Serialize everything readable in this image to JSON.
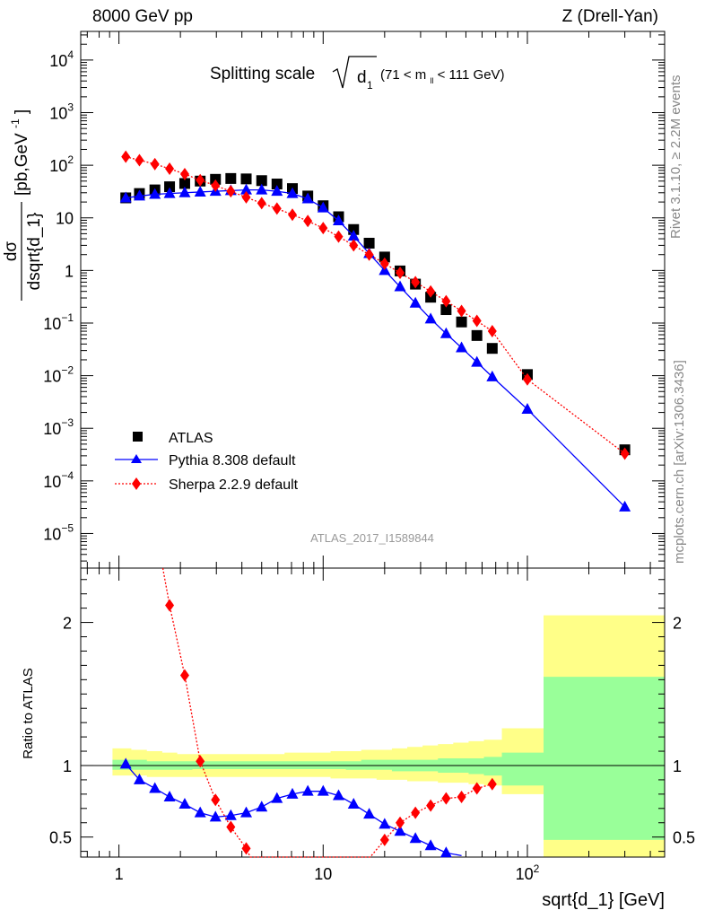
{
  "header": {
    "left": "8000 GeV pp",
    "right": "Z (Drell-Yan)"
  },
  "side_labels": {
    "rivet": "Rivet 3.1.10, ≥ 2.2M events",
    "mcplots": "mcplots.cern.ch [arXiv:1306.3436]"
  },
  "chart_data": [
    {
      "type": "scatter",
      "panel": "main",
      "title": "Splitting scale √d1 (71 < m_ll < 111 GeV)",
      "title_main": "Splitting scale",
      "title_var": "d",
      "title_var_sub": "1",
      "title_range_a": "(71 < m",
      "title_range_sub": "ll",
      "title_range_b": " < 111 GeV)",
      "ylabel": "dσ / dsqrt{d_1} [pb,GeV⁻¹]",
      "ylabel_num": "dσ",
      "ylabel_den": "dsqrt{d_1}",
      "ylabel_unit": "[pb,GeV",
      "ylabel_unit_sup": "-1",
      "ylabel_unit_end": "]",
      "yscale": "log",
      "xscale": "log",
      "xlim": [
        0.65,
        470
      ],
      "ylim": [
        2.2e-06,
        35000
      ],
      "legend_position": "bottom-left",
      "analysis_id": "ATLAS_2017_I1589844",
      "y_ticks": [
        {
          "base": "10",
          "exp": "4",
          "value": 10000
        },
        {
          "base": "10",
          "exp": "3",
          "value": 1000
        },
        {
          "base": "10",
          "exp": "2",
          "value": 100
        },
        {
          "base": "10",
          "exp": "",
          "value": 10
        },
        {
          "base": "1",
          "exp": "",
          "value": 1
        },
        {
          "base": "10",
          "exp": "−1",
          "value": 0.1
        },
        {
          "base": "10",
          "exp": "−2",
          "value": 0.01
        },
        {
          "base": "10",
          "exp": "−3",
          "value": 0.001
        },
        {
          "base": "10",
          "exp": "−4",
          "value": 0.0001
        },
        {
          "base": "10",
          "exp": "−5",
          "value": 1e-05
        }
      ],
      "series": [
        {
          "name": "ATLAS",
          "color": "#000000",
          "marker": "square",
          "x": [
            1.08,
            1.26,
            1.5,
            1.77,
            2.1,
            2.5,
            2.97,
            3.53,
            4.2,
            5.0,
            5.94,
            7.07,
            8.41,
            10.0,
            11.9,
            14.1,
            16.8,
            20.0,
            23.8,
            28.3,
            33.6,
            40.0,
            47.6,
            56.6,
            67.3,
            100.0,
            300.0
          ],
          "y": [
            24,
            29,
            34,
            39,
            45,
            50,
            54,
            56,
            55,
            51,
            44,
            36,
            26,
            17,
            10.5,
            6.0,
            3.3,
            1.8,
            0.98,
            0.55,
            0.31,
            0.18,
            0.105,
            0.058,
            0.033,
            0.0105,
            0.00039
          ]
        },
        {
          "name": "Pythia 8.308 default",
          "color": "#0000ff",
          "marker": "triangle",
          "line": "solid",
          "x": [
            1.08,
            1.26,
            1.5,
            1.77,
            2.1,
            2.5,
            2.97,
            3.53,
            4.2,
            5.0,
            5.94,
            7.07,
            8.41,
            10.0,
            11.9,
            14.1,
            16.8,
            20.0,
            23.8,
            28.3,
            33.6,
            40.0,
            47.6,
            56.6,
            67.3,
            100.0,
            300.0
          ],
          "y": [
            24,
            26,
            28,
            29,
            30,
            31,
            32,
            33,
            34,
            34,
            32,
            29,
            23,
            15.5,
            8.8,
            4.5,
            2.1,
            1.0,
            0.49,
            0.24,
            0.12,
            0.063,
            0.034,
            0.018,
            0.0095,
            0.0023,
            3.2e-05
          ]
        },
        {
          "name": "Sherpa 2.2.9 default",
          "color": "#ff0000",
          "marker": "diamond",
          "line": "dotted",
          "x": [
            1.08,
            1.26,
            1.5,
            1.77,
            2.1,
            2.5,
            2.97,
            3.53,
            4.2,
            5.0,
            5.94,
            7.07,
            8.41,
            10.0,
            11.9,
            14.1,
            16.8,
            20.0,
            23.8,
            28.3,
            33.6,
            40.0,
            47.6,
            56.6,
            67.3,
            100.0,
            300.0
          ],
          "y": [
            145,
            125,
            105,
            86,
            68,
            52,
            41,
            32,
            24.5,
            19,
            15,
            11.5,
            8.7,
            6.4,
            4.4,
            3.0,
            2.0,
            1.35,
            0.9,
            0.6,
            0.4,
            0.26,
            0.17,
            0.11,
            0.07,
            0.0085,
            0.00033
          ]
        }
      ]
    },
    {
      "type": "line",
      "panel": "ratio",
      "ylabel": "Ratio to ATLAS",
      "xlabel": "sqrt{d_1} [GeV]",
      "xscale": "log",
      "xlim": [
        0.65,
        470
      ],
      "ylim": [
        0.36,
        2.38
      ],
      "x_ticks": [
        {
          "base": "1",
          "exp": "",
          "value": 1
        },
        {
          "base": "10",
          "exp": "",
          "value": 10
        },
        {
          "base": "10",
          "exp": "2",
          "value": 100
        }
      ],
      "y_ticks": [
        {
          "label": "2",
          "value": 2
        },
        {
          "label": "1",
          "value": 1
        },
        {
          "label": "0.5",
          "value": 0.5
        }
      ],
      "uncertainty_bands": {
        "inner_color": "#99ff99",
        "outer_color": "#ffff88",
        "edges": [
          0.93,
          1.15,
          1.37,
          1.63,
          1.93,
          2.29,
          2.73,
          3.24,
          3.85,
          4.58,
          5.44,
          6.47,
          7.69,
          9.14,
          10.87,
          12.92,
          15.36,
          18.26,
          21.71,
          25.81,
          30.68,
          36.47,
          43.36,
          51.54,
          61.27,
          75.0,
          120.0,
          470.0
        ],
        "inner_low": [
          0.97,
          0.97,
          0.97,
          0.97,
          0.97,
          0.975,
          0.975,
          0.975,
          0.975,
          0.975,
          0.975,
          0.975,
          0.975,
          0.975,
          0.975,
          0.97,
          0.97,
          0.97,
          0.96,
          0.96,
          0.96,
          0.95,
          0.95,
          0.94,
          0.93,
          0.86,
          0.48
        ],
        "inner_high": [
          1.04,
          1.04,
          1.03,
          1.03,
          1.03,
          1.03,
          1.03,
          1.03,
          1.03,
          1.03,
          1.03,
          1.03,
          1.03,
          1.03,
          1.03,
          1.03,
          1.04,
          1.04,
          1.04,
          1.04,
          1.04,
          1.05,
          1.05,
          1.05,
          1.06,
          1.09,
          1.62
        ],
        "outer_low": [
          0.93,
          0.93,
          0.92,
          0.92,
          0.92,
          0.92,
          0.92,
          0.92,
          0.92,
          0.92,
          0.92,
          0.92,
          0.92,
          0.92,
          0.91,
          0.91,
          0.91,
          0.9,
          0.9,
          0.89,
          0.89,
          0.88,
          0.88,
          0.87,
          0.86,
          0.8,
          0.36
        ],
        "outer_high": [
          1.12,
          1.11,
          1.1,
          1.09,
          1.08,
          1.08,
          1.08,
          1.08,
          1.08,
          1.08,
          1.08,
          1.09,
          1.09,
          1.09,
          1.1,
          1.1,
          1.11,
          1.11,
          1.12,
          1.13,
          1.14,
          1.15,
          1.16,
          1.17,
          1.18,
          1.26,
          2.05
        ]
      },
      "series": [
        {
          "name": "Pythia 8.308 default",
          "color": "#0000ff",
          "marker": "triangle",
          "line": "solid",
          "x": [
            1.08,
            1.26,
            1.5,
            1.77,
            2.1,
            2.5,
            2.97,
            3.53,
            4.2,
            5.0,
            5.94,
            7.07,
            8.41,
            10.0,
            11.9,
            14.1,
            16.8,
            20.0,
            23.8,
            28.3,
            33.6,
            40.0,
            47.6
          ],
          "y": [
            1.01,
            0.9,
            0.84,
            0.78,
            0.73,
            0.67,
            0.64,
            0.65,
            0.67,
            0.71,
            0.77,
            0.8,
            0.82,
            0.82,
            0.79,
            0.73,
            0.66,
            0.59,
            0.54,
            0.49,
            0.44,
            0.39,
            0.37
          ]
        },
        {
          "name": "Sherpa 2.2.9 default",
          "color": "#ff0000",
          "marker": "diamond",
          "line": "dotted",
          "x": [
            1.64,
            1.77,
            2.1,
            2.5,
            2.97,
            3.53,
            4.2,
            4.4,
            17.0,
            20.0,
            23.8,
            28.3,
            33.6,
            40.0,
            47.6,
            56.6,
            67.3
          ],
          "y": [
            2.38,
            2.12,
            1.63,
            1.03,
            0.76,
            0.57,
            0.42,
            0.36,
            0.36,
            0.48,
            0.6,
            0.67,
            0.72,
            0.77,
            0.78,
            0.84,
            0.87
          ]
        }
      ]
    }
  ]
}
